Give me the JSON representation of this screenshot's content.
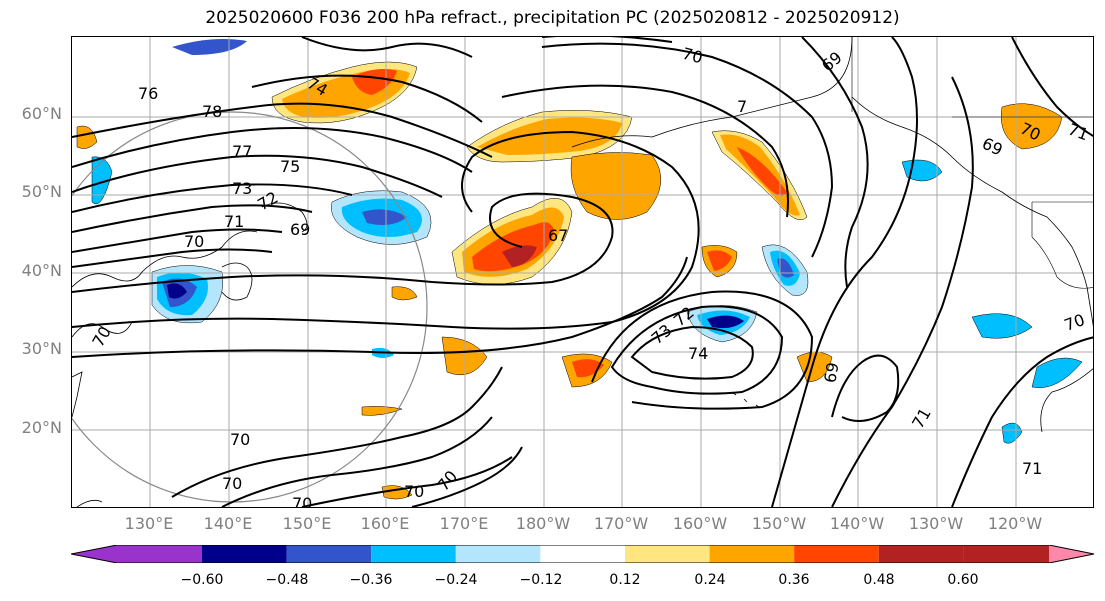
{
  "title": "2025020600 F036 200 hPa refract., precipitation PC (2025020812 - 2025020912)",
  "lat_labels": [
    "60°N",
    "50°N",
    "40°N",
    "30°N",
    "20°N"
  ],
  "lon_labels": [
    "130°E",
    "140°E",
    "150°E",
    "160°E",
    "170°E",
    "180°W",
    "170°W",
    "160°W",
    "150°W",
    "140°W",
    "130°W",
    "120°W"
  ],
  "contour_labels": [
    "76",
    "78",
    "74",
    "77",
    "75",
    "73",
    "72",
    "71",
    "70",
    "69",
    "67",
    "73",
    "72",
    "74",
    "69",
    "71",
    "70",
    "70",
    "70",
    "70",
    "70",
    "70",
    "71",
    "69",
    "70",
    "71",
    "69",
    "70",
    "70",
    "7"
  ],
  "colorbar": {
    "ticks": [
      "−0.60",
      "−0.48",
      "−0.36",
      "−0.24",
      "−0.12",
      "0.12",
      "0.24",
      "0.36",
      "0.48",
      "0.60"
    ],
    "colors": [
      "#9933cc",
      "#00008b",
      "#3355cc",
      "#00bfff",
      "#b3e5fc",
      "#ffffff",
      "#ffe680",
      "#ffa500",
      "#ff4500",
      "#b22222",
      "#ff88aa"
    ]
  }
}
